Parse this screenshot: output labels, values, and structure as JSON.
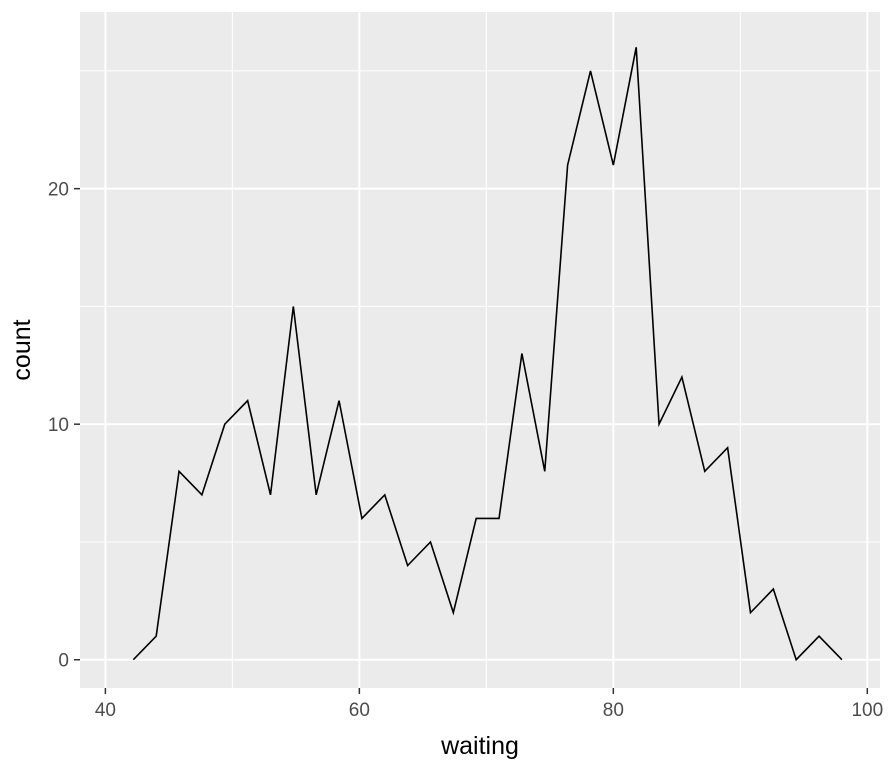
{
  "chart_data": {
    "type": "line",
    "xlabel": "waiting",
    "ylabel": "count",
    "xlim": [
      38.0,
      101.0
    ],
    "ylim": [
      -1.2,
      27.5
    ],
    "x_ticks": [
      40,
      60,
      80,
      100
    ],
    "x_tick_labels": [
      "40",
      "60",
      "80",
      "100"
    ],
    "y_ticks": [
      0,
      10,
      20
    ],
    "y_tick_labels": [
      "0",
      "10",
      "20"
    ],
    "x_minor_ticks": [
      50,
      70,
      90
    ],
    "y_minor_ticks": [
      5,
      15,
      25
    ],
    "grid": true,
    "panel_background": "#ebebeb",
    "grid_color": "#ffffff",
    "line_color": "#000000",
    "series": [
      {
        "x": [
          42.2,
          44.0,
          45.8,
          47.6,
          49.4,
          51.2,
          53.0,
          54.8,
          56.6,
          58.4,
          60.2,
          62.0,
          63.8,
          65.6,
          67.4,
          69.2,
          71.0,
          72.8,
          74.6,
          76.4,
          78.2,
          80.0,
          81.8,
          83.6,
          85.4,
          87.2,
          89.0,
          90.8,
          92.6,
          94.4,
          96.2,
          98.0
        ],
        "values": [
          0,
          1,
          8,
          7,
          10,
          11,
          7,
          15,
          7,
          11,
          6,
          7,
          4,
          5,
          2,
          6,
          6,
          13,
          8,
          21,
          25,
          21,
          26,
          10,
          12,
          8,
          9,
          2,
          3,
          0,
          1,
          0
        ]
      }
    ]
  }
}
